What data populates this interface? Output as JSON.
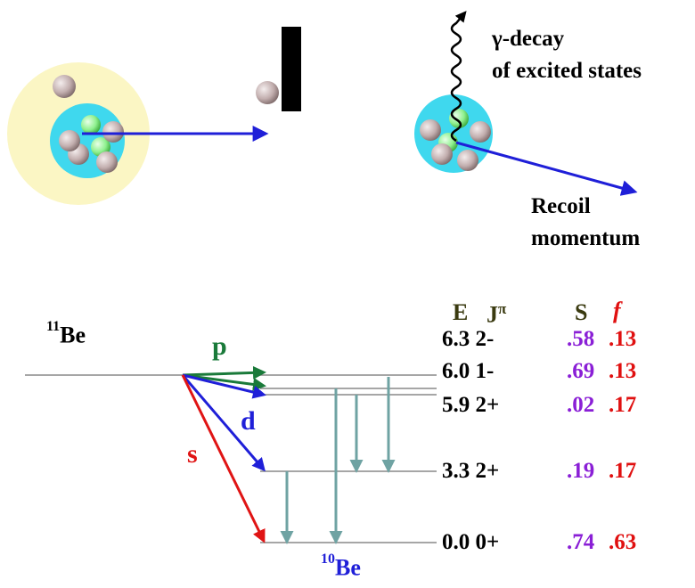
{
  "captions": {
    "gamma_line1": "γ-decay",
    "gamma_line2": "of excited states",
    "recoil_line1": "Recoil",
    "recoil_line2": "momentum"
  },
  "table": {
    "headers": {
      "E": "E",
      "J": "J",
      "J_sup": "π",
      "S": "S",
      "f": "f"
    },
    "rows": [
      {
        "E": "6.3",
        "J": "2-",
        "S": ".58",
        "f": ".13"
      },
      {
        "E": "6.0",
        "J": "1-",
        "S": ".69",
        "f": ".13"
      },
      {
        "E": "5.9",
        "J": "2+",
        "S": ".02",
        "f": ".17"
      },
      {
        "E": "3.3",
        "J": "2+",
        "S": ".19",
        "f": ".17"
      },
      {
        "E": "0.0",
        "J": "0+",
        "S": ".74",
        "f": ".63"
      }
    ]
  },
  "isotopes": {
    "parent_mass": "11",
    "parent_symbol": "Be",
    "daughter_mass": "10",
    "daughter_symbol": "Be"
  },
  "transitions": {
    "p": "p",
    "d": "d",
    "s": "s"
  },
  "colors": {
    "p": "#1a7a3a",
    "d": "#1f1fd8",
    "s": "#e01414",
    "gamma": "#6fa3a3",
    "purple": "#8a1fd6",
    "red": "#e01010",
    "halo": "#fbf6c4",
    "core": "#3fd8ee",
    "neutron": "#c4b0b0",
    "proton": "#8ef08e"
  }
}
